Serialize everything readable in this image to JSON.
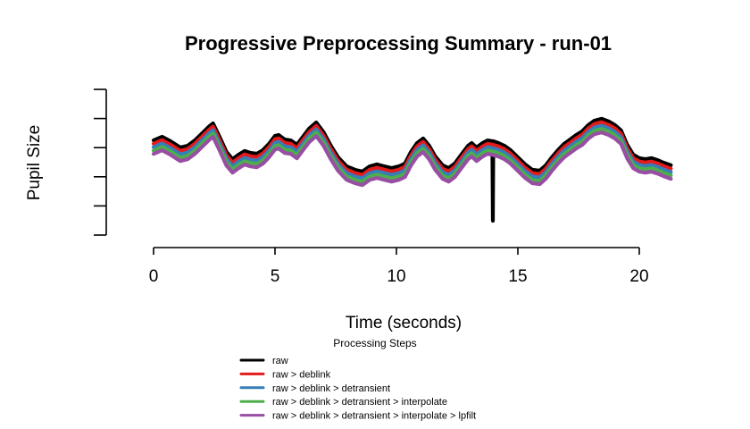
{
  "chart_data": {
    "type": "line",
    "title": "Progressive Preprocessing Summary - run-01",
    "xlabel": "Time (seconds)",
    "ylabel": "Pupil Size",
    "legend_title": "Processing Steps",
    "x_ticks": [
      0,
      5,
      10,
      15,
      20
    ],
    "x_range": [
      0,
      21.3
    ],
    "y_axis": {
      "tick_count": 6,
      "labels_shown": false
    },
    "grid": false,
    "legend_position": "bottom-center",
    "x_seconds": [
      0.0,
      0.35,
      0.7,
      1.1,
      1.4,
      1.7,
      2.0,
      2.3,
      2.45,
      2.7,
      3.0,
      3.25,
      3.5,
      3.75,
      4.0,
      4.25,
      4.5,
      4.75,
      5.0,
      5.15,
      5.4,
      5.65,
      5.9,
      6.15,
      6.4,
      6.7,
      7.0,
      7.3,
      7.6,
      7.95,
      8.3,
      8.6,
      8.9,
      9.2,
      9.5,
      9.8,
      10.1,
      10.35,
      10.6,
      10.85,
      11.1,
      11.35,
      11.6,
      11.9,
      12.15,
      12.4,
      12.7,
      12.95,
      13.1,
      13.3,
      13.55,
      13.75,
      13.95,
      14.2,
      14.45,
      14.7,
      15.0,
      15.3,
      15.6,
      15.9,
      16.15,
      16.4,
      16.65,
      16.9,
      17.15,
      17.4,
      17.65,
      17.9,
      18.15,
      18.45,
      18.75,
      19.0,
      19.25,
      19.5,
      19.75,
      20.0,
      20.25,
      20.5,
      20.75,
      21.0,
      21.3
    ],
    "base_values": [
      0.65,
      0.675,
      0.644,
      0.601,
      0.613,
      0.65,
      0.699,
      0.748,
      0.767,
      0.681,
      0.571,
      0.521,
      0.552,
      0.577,
      0.564,
      0.558,
      0.583,
      0.626,
      0.681,
      0.687,
      0.656,
      0.65,
      0.62,
      0.675,
      0.73,
      0.773,
      0.706,
      0.613,
      0.534,
      0.472,
      0.448,
      0.436,
      0.472,
      0.485,
      0.472,
      0.46,
      0.472,
      0.491,
      0.571,
      0.632,
      0.663,
      0.613,
      0.54,
      0.479,
      0.46,
      0.491,
      0.558,
      0.613,
      0.632,
      0.601,
      0.632,
      0.65,
      0.644,
      0.632,
      0.613,
      0.583,
      0.534,
      0.485,
      0.448,
      0.442,
      0.479,
      0.534,
      0.583,
      0.626,
      0.656,
      0.687,
      0.712,
      0.755,
      0.785,
      0.798,
      0.779,
      0.755,
      0.718,
      0.62,
      0.552,
      0.528,
      0.521,
      0.528,
      0.515,
      0.497,
      0.479
    ],
    "series": [
      {
        "name": "raw",
        "color": "#000000",
        "offset": 0.0,
        "has_blink_spike": true
      },
      {
        "name": "raw > deblink",
        "color": "#E41A1C",
        "offset": -0.023,
        "has_blink_spike": false
      },
      {
        "name": "raw > deblink > detransient",
        "color": "#377EB8",
        "offset": -0.047,
        "has_blink_spike": false
      },
      {
        "name": "raw > deblink > detransient > interpolate",
        "color": "#4DAF4A",
        "offset": -0.07,
        "has_blink_spike": false
      },
      {
        "name": "raw > deblink > detransient > interpolate > lpfilt",
        "color": "#984EA3",
        "offset": -0.093,
        "has_blink_spike": false
      }
    ],
    "blink_spike": {
      "t": 13.95,
      "value_bottom": 0.098
    }
  }
}
